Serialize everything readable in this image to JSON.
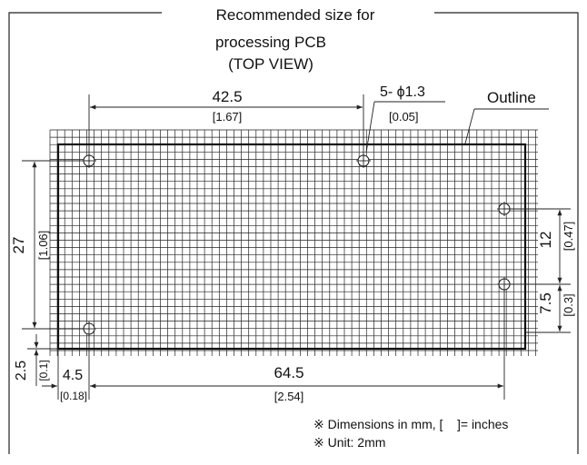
{
  "title": {
    "line1": "Recommended size for",
    "line2": "processing PCB",
    "line3": "(TOP VIEW)"
  },
  "labels": {
    "top_spacing_mm": "42.5",
    "top_spacing_in": "[1.67]",
    "hole_callout": "5- ϕ1.3",
    "hole_inch": "[0.05]",
    "outline": "Outline",
    "left_height_mm": "27",
    "left_height_in": "[1.06]",
    "right_upper_mm": "12",
    "right_upper_in": "[0.47]",
    "right_lower_mm": "7.5",
    "right_lower_in": "[0.3]",
    "bottom_offset_mm": "2.5",
    "bottom_offset_in": "[0.1]",
    "left_offset_mm": "4.5",
    "left_offset_in": "[0.18]",
    "bottom_span_mm": "64.5",
    "bottom_span_in": "[2.54]"
  },
  "notes": [
    "※ Dimensions in mm, [    ]= inches",
    "※ Unit: 2mm"
  ]
}
